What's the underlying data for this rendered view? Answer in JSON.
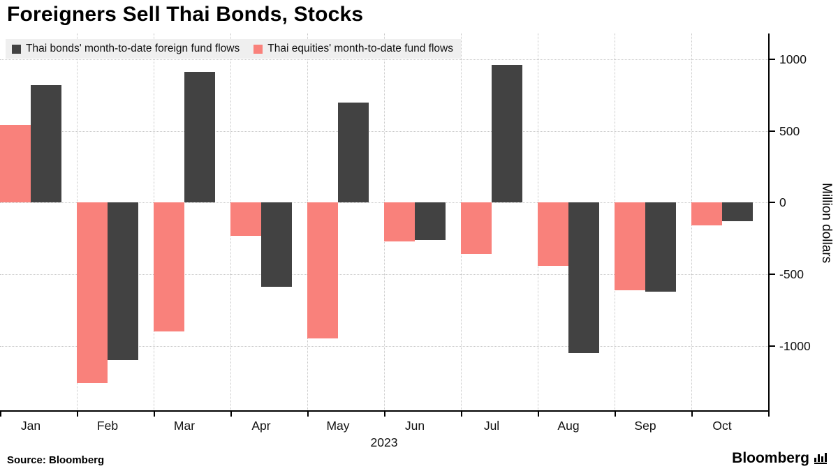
{
  "title": "Foreigners Sell Thai Bonds, Stocks",
  "source_label": "Source:  Bloomberg",
  "logo_text": "Bloomberg",
  "chart_data": {
    "type": "bar",
    "title": "Foreigners Sell Thai Bonds, Stocks",
    "categories": [
      "Jan",
      "Feb",
      "Mar",
      "Apr",
      "May",
      "Jun",
      "Jul",
      "Aug",
      "Sep",
      "Oct"
    ],
    "series": [
      {
        "name": "Thai bonds' month-to-date foreign fund flows",
        "color": "#424242",
        "values": [
          820,
          -1100,
          910,
          -590,
          700,
          -260,
          960,
          -1050,
          -620,
          -130
        ]
      },
      {
        "name": "Thai equities' month-to-date fund flows",
        "color": "#f9817b",
        "values": [
          540,
          -1260,
          -900,
          -230,
          -950,
          -270,
          -360,
          -440,
          -610,
          -160
        ]
      }
    ],
    "xlabel": "2023",
    "ylabel": "Million dollars",
    "yticks": [
      1000,
      500,
      0,
      -500,
      -1000
    ],
    "ylim": [
      -1450,
      1180
    ],
    "grid": "dotted",
    "legend_position": "top-left",
    "axis_side": "right"
  }
}
